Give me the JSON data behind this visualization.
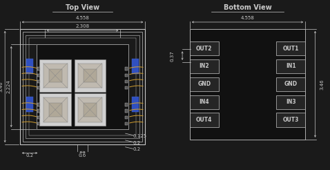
{
  "bg_color": "#1a1a1a",
  "fg_color": "#c8c8c8",
  "title_top_view": "Top View",
  "title_bottom_view": "Bottom View",
  "dim_4558": "4.558",
  "dim_2308": "2.308",
  "dim_346": "3.46",
  "dim_2224": "2.224",
  "dim_0125": "0.125",
  "dim_02a": "0.2",
  "dim_02b": "0.2",
  "dim_02c": "0.2",
  "dim_06": "0.6",
  "dim_037": "0.37",
  "dim_346b": "3.46",
  "gold_color": "#d4a030",
  "blue_cap_color": "#3050c0",
  "left_labels": [
    "OUT2",
    "IN2",
    "GND",
    "IN4",
    "OUT4"
  ],
  "right_labels": [
    "OUT1",
    "IN1",
    "GND",
    "IN3",
    "OUT3"
  ]
}
